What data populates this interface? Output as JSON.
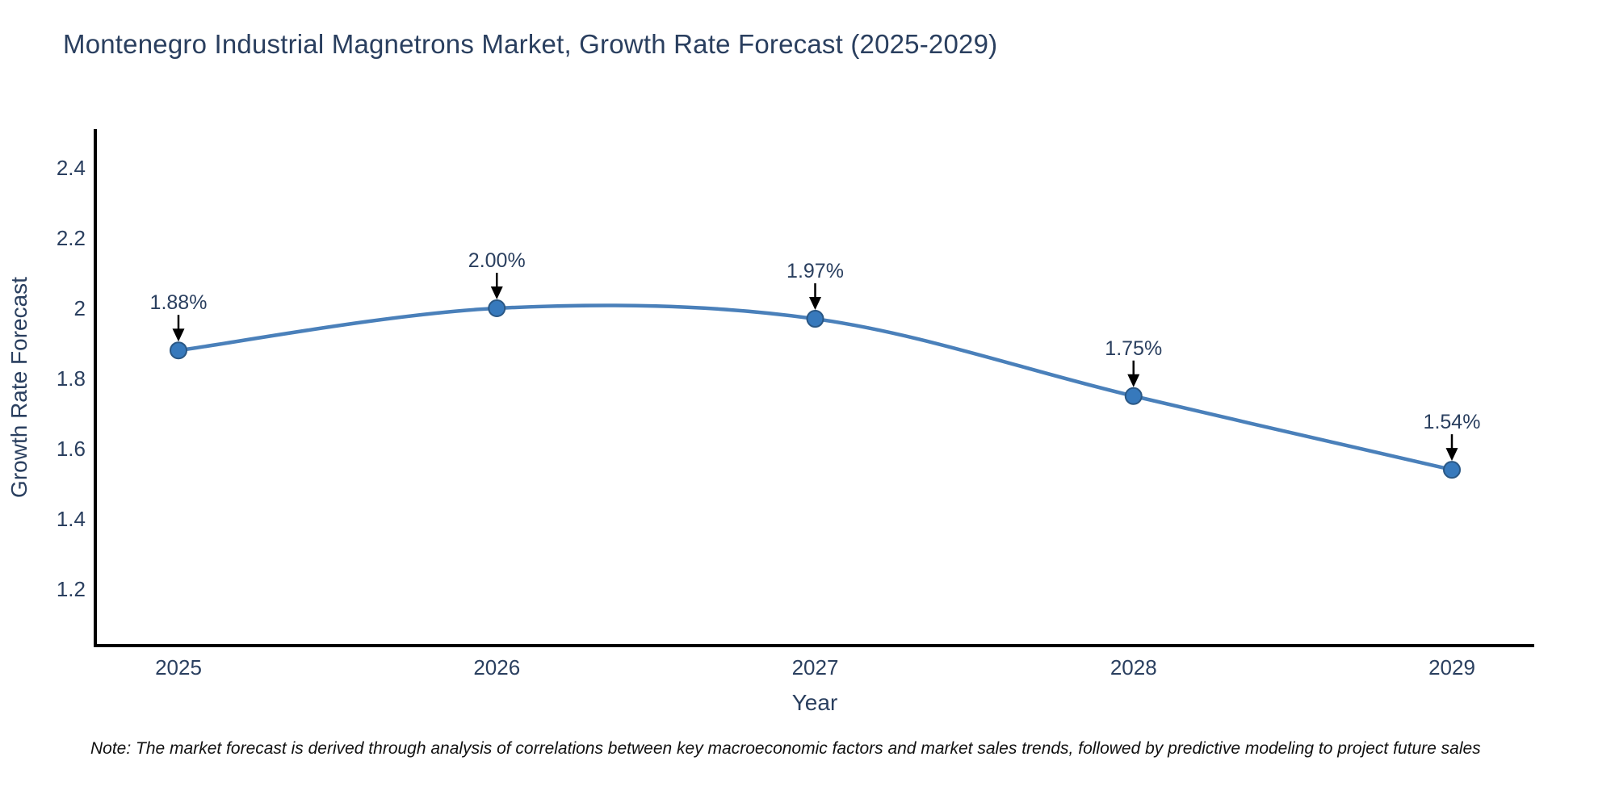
{
  "title": "Montenegro Industrial Magnetrons Market, Growth Rate Forecast (2025-2029)",
  "note": "Note: The market forecast is derived through analysis of correlations between key macroeconomic factors and market sales trends, followed by predictive modeling to project future sales",
  "chart_data": {
    "type": "line",
    "title": "Montenegro Industrial Magnetrons Market, Growth Rate Forecast (2025-2029)",
    "xlabel": "Year",
    "ylabel": "Growth Rate Forecast",
    "categories": [
      "2025",
      "2026",
      "2027",
      "2028",
      "2029"
    ],
    "values": [
      1.88,
      2.0,
      1.97,
      1.75,
      1.54
    ],
    "point_labels": [
      "1.88%",
      "2.00%",
      "1.97%",
      "1.75%",
      "1.54%"
    ],
    "y_ticks": [
      2.4,
      2.2,
      2.0,
      1.8,
      1.6,
      1.4,
      1.2
    ],
    "y_tick_labels": [
      "2.4",
      "2.2",
      "2",
      "1.8",
      "1.6",
      "1.4",
      "1.2"
    ],
    "ylim": [
      1.06,
      2.51
    ],
    "line_shape": "spline",
    "grid": false,
    "legend": "none",
    "colors": {
      "line": "#4a80ba",
      "marker": "#3779bc",
      "marker_edge": "#2a5784",
      "text": "#2a3f5f",
      "axis": "#000000",
      "annotation_arrow": "#000000"
    }
  }
}
